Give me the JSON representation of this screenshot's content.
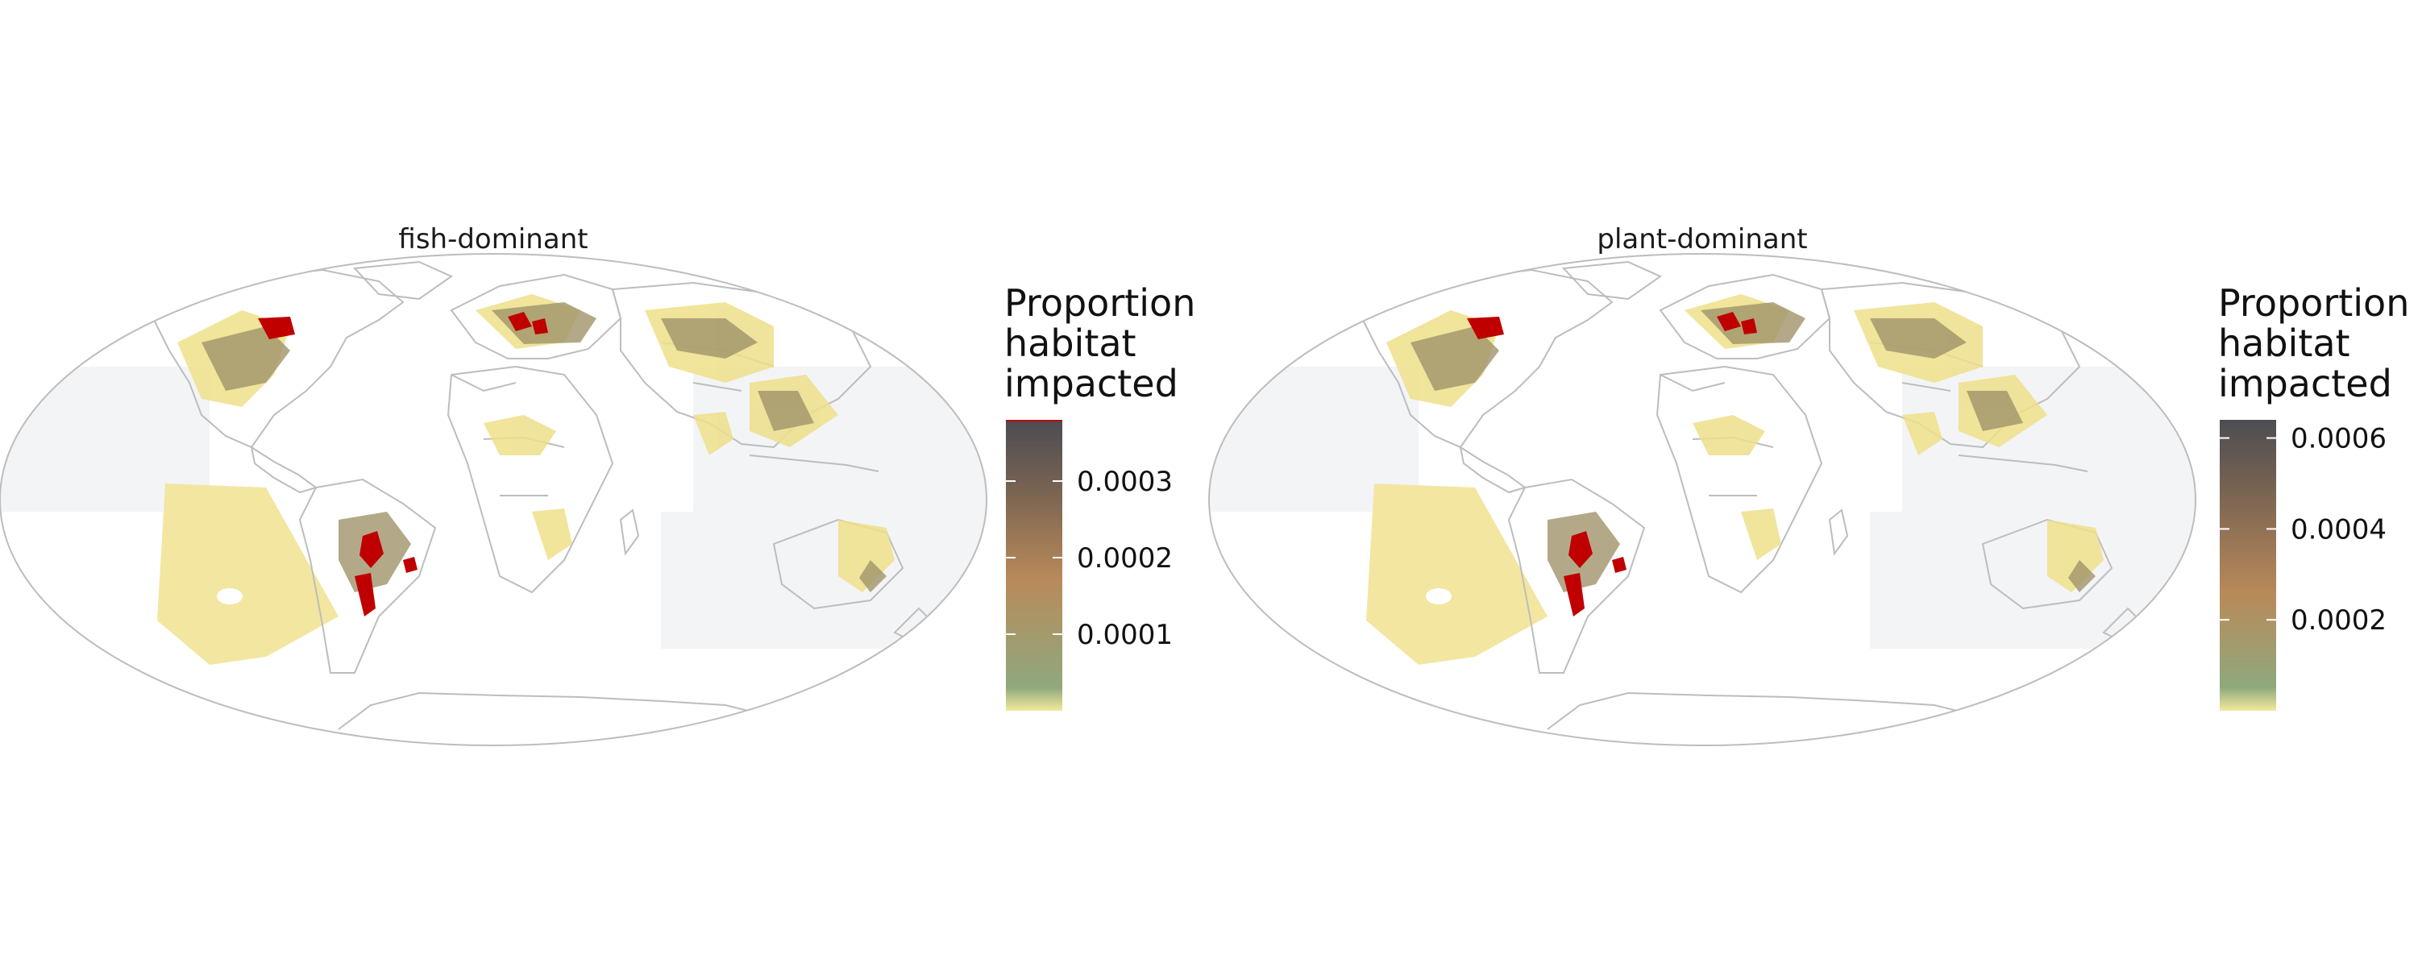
{
  "panels": [
    {
      "id": "fish",
      "title": "fish-dominant",
      "legend": {
        "title_lines": [
          "Proportion",
          "habitat",
          "impacted"
        ],
        "ticks": [
          {
            "value": 0.0003,
            "label": "0.0003"
          },
          {
            "value": 0.0002,
            "label": "0.0002"
          },
          {
            "value": 0.0001,
            "label": "0.0001"
          }
        ],
        "range": [
          0,
          0.00038
        ],
        "colors": [
          "#f2e79a",
          "#8da77e",
          "#b98a5a",
          "#7a6452",
          "#4d4d52",
          "#cc0000"
        ]
      }
    },
    {
      "id": "plant",
      "title": "plant-dominant",
      "legend": {
        "title_lines": [
          "Proportion",
          "habitat",
          "impacted"
        ],
        "ticks": [
          {
            "value": 0.0006,
            "label": "0.0006"
          },
          {
            "value": 0.0004,
            "label": "0.0004"
          },
          {
            "value": 0.0002,
            "label": "0.0002"
          }
        ],
        "range": [
          0,
          0.00064
        ],
        "colors": [
          "#f2e79a",
          "#8da77e",
          "#b98a5a",
          "#7a6452",
          "#4d4d52"
        ]
      }
    }
  ],
  "map": {
    "projection": "mollweide",
    "border_color": "#bdbdbd",
    "ocean_fill_color": "#f3f4f6",
    "impact_low_color": "#eedf8a",
    "impact_mid_color": "#a99a6a",
    "impact_high_color": "#c00000"
  }
}
